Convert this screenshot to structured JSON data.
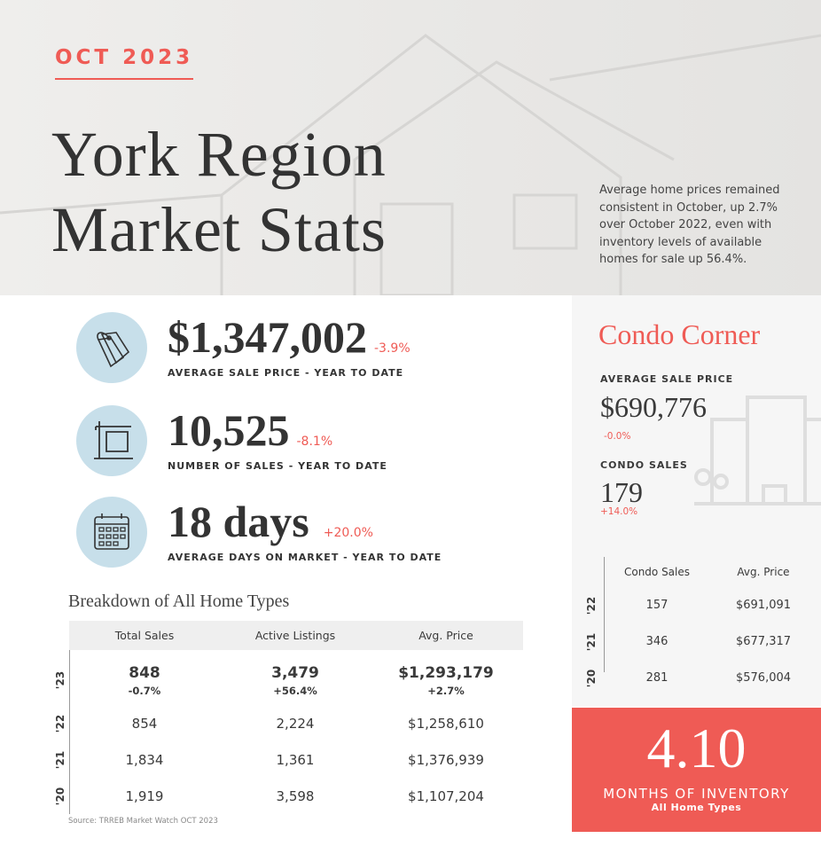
{
  "header": {
    "date": "OCT 2023",
    "title_line1": "York Region",
    "title_line2": "Market Stats",
    "intro": "Average home prices remained consistent in October, up 2.7% over October 2022, even with inventory levels of available homes for sale up 56.4%."
  },
  "stats": [
    {
      "icon": "price-tag-icon",
      "value": "$1,347,002",
      "change": "-3.9%",
      "label": "AVERAGE SALE PRICE - YEAR TO DATE"
    },
    {
      "icon": "sale-sign-icon",
      "value": "10,525",
      "change": "-8.1%",
      "label": "NUMBER OF SALES - YEAR TO DATE"
    },
    {
      "icon": "calendar-icon",
      "value": "18 days",
      "change": "+20.0%",
      "label": "AVERAGE DAYS ON MARKET - YEAR TO DATE"
    }
  ],
  "breakdown": {
    "title": "Breakdown of All Home Types",
    "headers": [
      "Total Sales",
      "Active Listings",
      "Avg. Price"
    ],
    "current": {
      "year": "'23",
      "values": [
        "848",
        "3,479",
        "$1,293,179"
      ],
      "changes": [
        "-0.7%",
        "+56.4%",
        "+2.7%"
      ]
    },
    "rows": [
      {
        "year": "'22",
        "values": [
          "854",
          "2,224",
          "$1,258,610"
        ]
      },
      {
        "year": "'21",
        "values": [
          "1,834",
          "1,361",
          "$1,376,939"
        ]
      },
      {
        "year": "'20",
        "values": [
          "1,919",
          "3,598",
          "$1,107,204"
        ]
      }
    ],
    "source": "Source: TRREB Market Watch OCT 2023"
  },
  "condo": {
    "title": "Condo Corner",
    "avg_label": "AVERAGE SALE PRICE",
    "avg_value": "$690,776",
    "avg_change": "-0.0%",
    "sales_label": "CONDO SALES",
    "sales_value": "179",
    "sales_change": "+14.0%",
    "headers": [
      "Condo Sales",
      "Avg. Price"
    ],
    "rows": [
      {
        "year": "'22",
        "values": [
          "157",
          "$691,091"
        ]
      },
      {
        "year": "'21",
        "values": [
          "346",
          "$677,317"
        ]
      },
      {
        "year": "'20",
        "values": [
          "281",
          "$576,004"
        ]
      }
    ]
  },
  "inventory": {
    "value": "4.10",
    "label": "MONTHS OF INVENTORY",
    "sublabel": "All Home Types"
  },
  "colors": {
    "accent": "#ef5b55",
    "icon_bg": "#c7dfea",
    "panel": "#f6f6f6"
  }
}
